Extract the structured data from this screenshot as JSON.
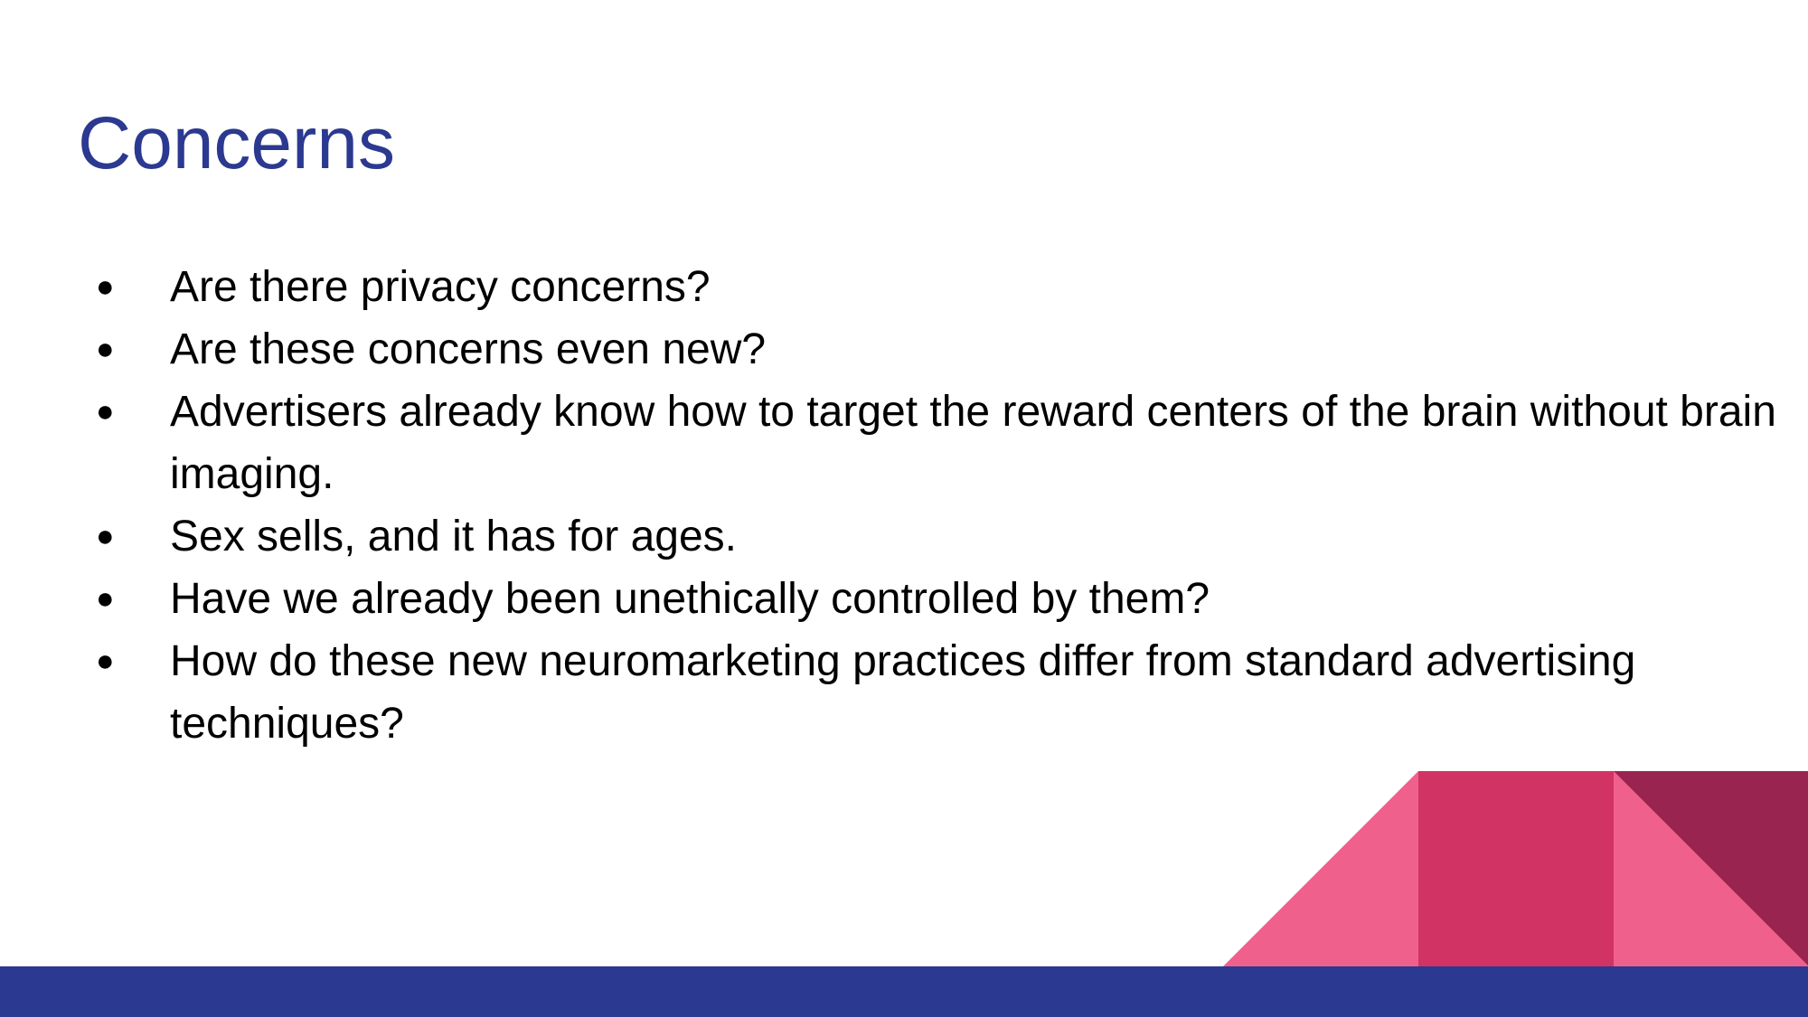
{
  "slide": {
    "title": "Concerns",
    "bullets": [
      "Are there privacy concerns?",
      "Are these concerns even new?",
      "Advertisers already know how to target the reward centers of the brain without brain imaging.",
      "Sex sells, and it has for ages.",
      "Have we already been unethically controlled by them?",
      "How do these new neuromarketing practices differ from standard advertising techniques?"
    ],
    "bullet_glyph": "●"
  },
  "colors": {
    "title": "#2b3990",
    "footer_bar": "#2b3990",
    "pink_light": "#f0608d",
    "pink_mid": "#d13365",
    "pink_dark": "#9a2450"
  }
}
